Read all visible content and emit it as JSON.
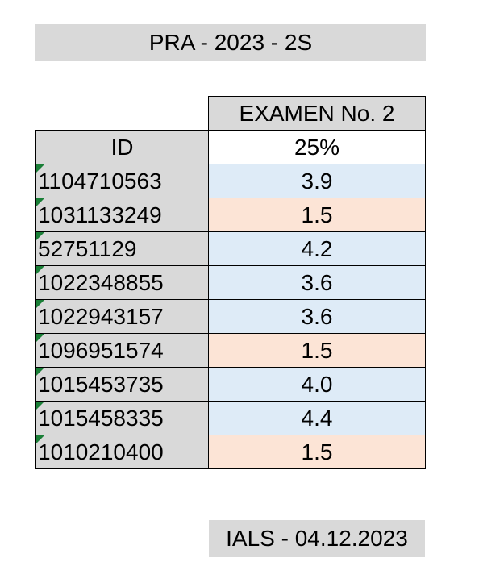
{
  "title": "PRA - 2023 - 2S",
  "table": {
    "exam_header": "EXAMEN No. 2",
    "id_header": "ID",
    "weight": "25%",
    "rows": [
      {
        "id": "1104710563",
        "grade": "3.9",
        "color": "#deebf7"
      },
      {
        "id": "1031133249",
        "grade": "1.5",
        "color": "#fce4d6"
      },
      {
        "id": "52751129",
        "grade": "4.2",
        "color": "#deebf7"
      },
      {
        "id": "1022348855",
        "grade": "3.6",
        "color": "#deebf7"
      },
      {
        "id": "1022943157",
        "grade": "3.6",
        "color": "#deebf7"
      },
      {
        "id": "1096951574",
        "grade": "1.5",
        "color": "#fce4d6"
      },
      {
        "id": "1015453735",
        "grade": "4.0",
        "color": "#deebf7"
      },
      {
        "id": "1015458335",
        "grade": "4.4",
        "color": "#deebf7"
      },
      {
        "id": "1010210400",
        "grade": "1.5",
        "color": "#fce4d6"
      }
    ]
  },
  "footer": "IALS - 04.12.2023",
  "colors": {
    "header_gray": "#d9d9d9",
    "pass_blue": "#deebf7",
    "fail_peach": "#fce4d6",
    "flag_green": "#1a7f37"
  }
}
